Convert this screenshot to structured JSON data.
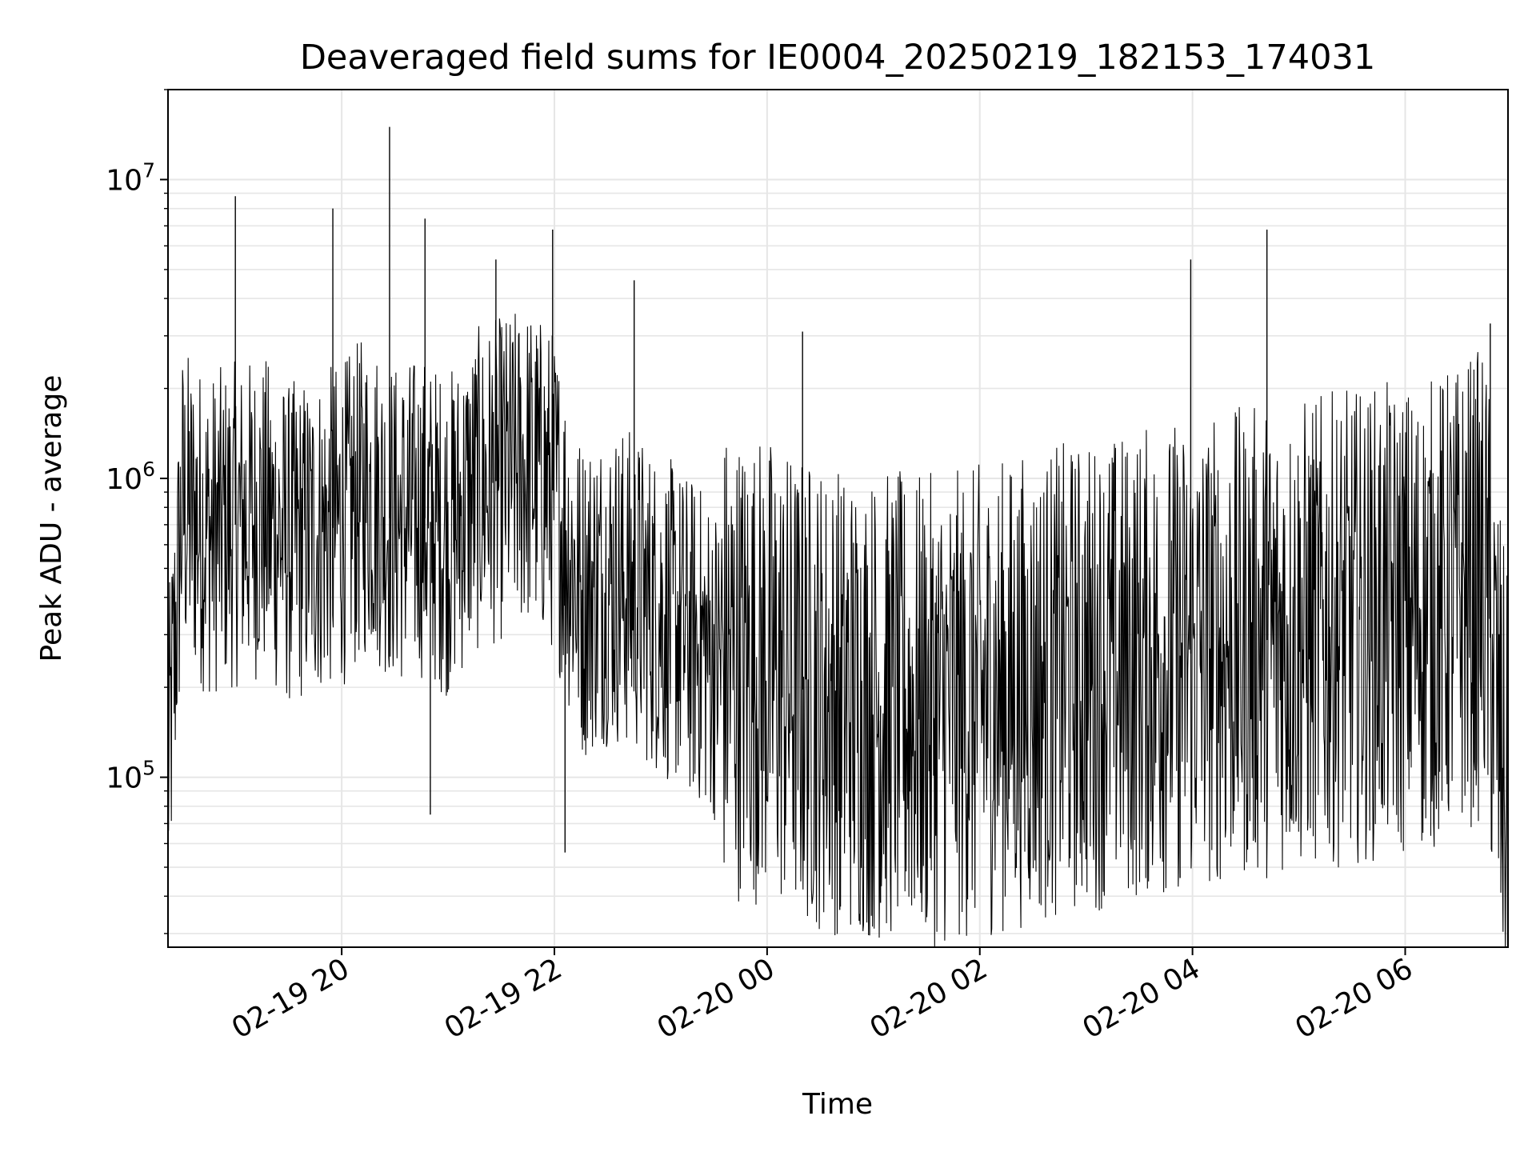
{
  "chart_data": {
    "type": "line",
    "title": "Deaveraged field sums for IE0004_20250219_182153_174031",
    "xlabel": "Time",
    "ylabel": "Peak ADU - average",
    "yscale": "log",
    "ylim": [
      27000,
      20000000
    ],
    "xlim": [
      "2025-02-19 18:22",
      "2025-02-20 06:58"
    ],
    "grid": true,
    "line_color": "#000000",
    "grid_color": "#e6e6e6",
    "x_ticks": [
      {
        "value": "2025-02-19 20:00",
        "label": "02-19 20"
      },
      {
        "value": "2025-02-19 22:00",
        "label": "02-19 22"
      },
      {
        "value": "2025-02-20 00:00",
        "label": "02-20 00"
      },
      {
        "value": "2025-02-20 02:00",
        "label": "02-20 02"
      },
      {
        "value": "2025-02-20 04:00",
        "label": "02-20 04"
      },
      {
        "value": "2025-02-20 06:00",
        "label": "02-20 06"
      }
    ],
    "y_ticks": [
      {
        "value": 100000,
        "base": "10",
        "exp": "5"
      },
      {
        "value": 1000000,
        "base": "10",
        "exp": "6"
      },
      {
        "value": 10000000,
        "base": "10",
        "exp": "7"
      }
    ],
    "series": [
      {
        "x": [
          "2025-02-19 18:22",
          "2025-02-19 18:30",
          "2025-02-19 18:45",
          "2025-02-19 19:00",
          "2025-02-19 19:15",
          "2025-02-19 19:30",
          "2025-02-19 19:45",
          "2025-02-19 20:00",
          "2025-02-19 20:15",
          "2025-02-19 20:30",
          "2025-02-19 20:45",
          "2025-02-19 21:00",
          "2025-02-19 21:15",
          "2025-02-19 21:30",
          "2025-02-19 21:45",
          "2025-02-19 22:00",
          "2025-02-19 22:15",
          "2025-02-19 22:30",
          "2025-02-19 22:45",
          "2025-02-19 23:00",
          "2025-02-19 23:15",
          "2025-02-19 23:30",
          "2025-02-19 23:45",
          "2025-02-20 00:00",
          "2025-02-20 00:15",
          "2025-02-20 00:30",
          "2025-02-20 00:45",
          "2025-02-20 01:00",
          "2025-02-20 01:15",
          "2025-02-20 01:30",
          "2025-02-20 01:45",
          "2025-02-20 02:00",
          "2025-02-20 02:15",
          "2025-02-20 02:30",
          "2025-02-20 02:45",
          "2025-02-20 03:00",
          "2025-02-20 03:15",
          "2025-02-20 03:30",
          "2025-02-20 03:45",
          "2025-02-20 04:00",
          "2025-02-20 04:15",
          "2025-02-20 04:30",
          "2025-02-20 04:45",
          "2025-02-20 05:00",
          "2025-02-20 05:15",
          "2025-02-20 05:30",
          "2025-02-20 05:45",
          "2025-02-20 06:00",
          "2025-02-20 06:15",
          "2025-02-20 06:30",
          "2025-02-20 06:45",
          "2025-02-20 06:58"
        ],
        "y": [
          100000,
          800000,
          650000,
          700000,
          750000,
          600000,
          650000,
          700000,
          900000,
          700000,
          750000,
          650000,
          900000,
          1000000,
          1100000,
          900000,
          400000,
          450000,
          420000,
          350000,
          300000,
          250000,
          240000,
          230000,
          200000,
          190000,
          180000,
          175000,
          170000,
          165000,
          170000,
          180000,
          190000,
          200000,
          210000,
          220000,
          230000,
          240000,
          250000,
          260000,
          270000,
          280000,
          290000,
          300000,
          310000,
          320000,
          330000,
          340000,
          350000,
          400000,
          450000,
          70000
        ],
        "spikes": [
          {
            "x": "2025-02-19 19:00",
            "y": 8800000
          },
          {
            "x": "2025-02-19 19:55",
            "y": 8000000
          },
          {
            "x": "2025-02-19 20:27",
            "y": 15000000
          },
          {
            "x": "2025-02-19 20:47",
            "y": 7400000
          },
          {
            "x": "2025-02-19 21:27",
            "y": 5400000
          },
          {
            "x": "2025-02-19 21:59",
            "y": 6800000
          },
          {
            "x": "2025-02-19 22:45",
            "y": 4600000
          },
          {
            "x": "2025-02-20 00:20",
            "y": 3100000
          },
          {
            "x": "2025-02-20 03:59",
            "y": 5400000
          },
          {
            "x": "2025-02-20 04:42",
            "y": 6800000
          },
          {
            "x": "2025-02-20 06:48",
            "y": 3300000
          }
        ],
        "dips": [
          {
            "x": "2025-02-19 20:50",
            "y": 75000
          },
          {
            "x": "2025-02-19 22:06",
            "y": 56000
          },
          {
            "x": "2025-02-20 00:41",
            "y": 36000
          },
          {
            "x": "2025-02-20 01:04",
            "y": 38000
          },
          {
            "x": "2025-02-20 03:53",
            "y": 46000
          },
          {
            "x": "2025-02-20 06:55",
            "y": 50000
          }
        ]
      }
    ]
  }
}
